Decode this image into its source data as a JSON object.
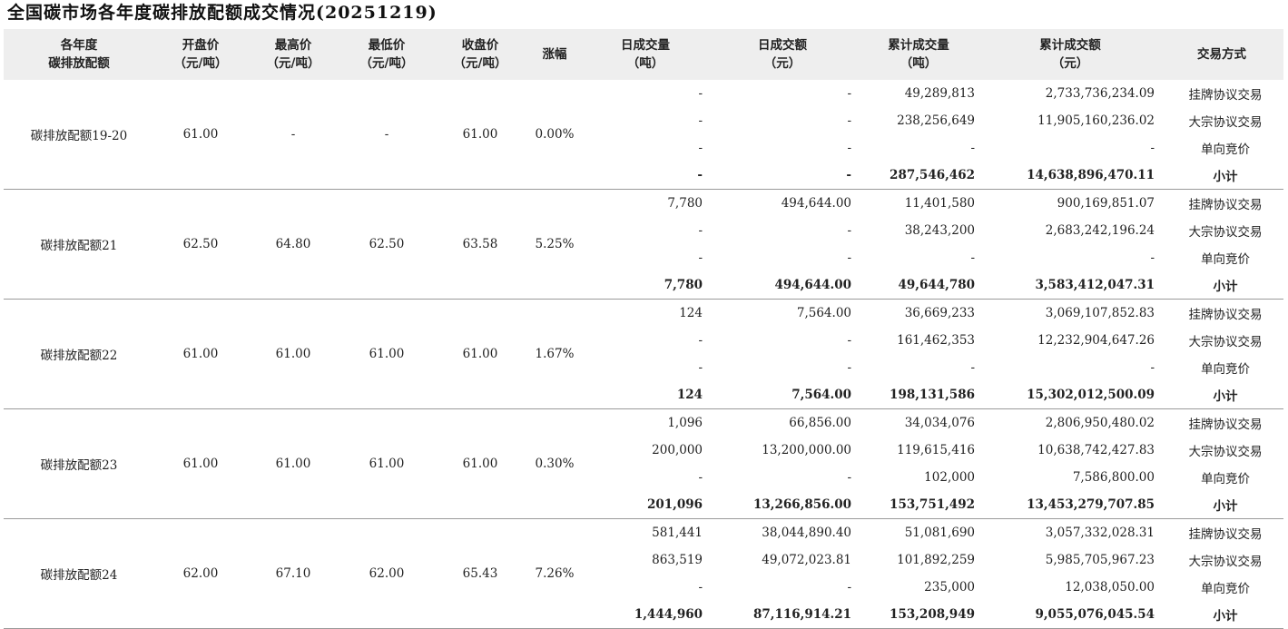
{
  "title": "全国碳市场各年度碳排放配额成交情况(20251219)",
  "headers": [
    [
      "各年度",
      "碳排放配额"
    ],
    [
      "开盘价",
      "（元/吨）"
    ],
    [
      "最高价",
      "（元/吨）"
    ],
    [
      "最低价",
      "（元/吨）"
    ],
    [
      "收盘价",
      "（元/吨）"
    ],
    [
      "涨幅"
    ],
    [
      "日成交量",
      "（吨）"
    ],
    [
      "日成交额",
      "（元）"
    ],
    [
      "累计成交量",
      "（吨）"
    ],
    [
      "累计成交额",
      "（元）"
    ],
    [
      "交易方式"
    ]
  ],
  "groups": [
    {
      "name": "碳排放配额19-20",
      "open": "61.00",
      "high": "-",
      "low": "-",
      "close": "61.00",
      "change": "0.00%",
      "rows": [
        {
          "dv": "-",
          "da": "-",
          "cv": "49,289,813",
          "ca": "2,733,736,234.09",
          "method": "挂牌协议交易"
        },
        {
          "dv": "-",
          "da": "-",
          "cv": "238,256,649",
          "ca": "11,905,160,236.02",
          "method": "大宗协议交易"
        },
        {
          "dv": "-",
          "da": "-",
          "cv": "-",
          "ca": "-",
          "method": "单向竞价"
        },
        {
          "dv": "-",
          "da": "-",
          "cv": "287,546,462",
          "ca": "14,638,896,470.11",
          "method": "小计"
        }
      ]
    },
    {
      "name": "碳排放配额21",
      "open": "62.50",
      "high": "64.80",
      "low": "62.50",
      "close": "63.58",
      "change": "5.25%",
      "rows": [
        {
          "dv": "7,780",
          "da": "494,644.00",
          "cv": "11,401,580",
          "ca": "900,169,851.07",
          "method": "挂牌协议交易"
        },
        {
          "dv": "-",
          "da": "-",
          "cv": "38,243,200",
          "ca": "2,683,242,196.24",
          "method": "大宗协议交易"
        },
        {
          "dv": "-",
          "da": "-",
          "cv": "-",
          "ca": "-",
          "method": "单向竞价"
        },
        {
          "dv": "7,780",
          "da": "494,644.00",
          "cv": "49,644,780",
          "ca": "3,583,412,047.31",
          "method": "小计"
        }
      ]
    },
    {
      "name": "碳排放配额22",
      "open": "61.00",
      "high": "61.00",
      "low": "61.00",
      "close": "61.00",
      "change": "1.67%",
      "rows": [
        {
          "dv": "124",
          "da": "7,564.00",
          "cv": "36,669,233",
          "ca": "3,069,107,852.83",
          "method": "挂牌协议交易"
        },
        {
          "dv": "-",
          "da": "-",
          "cv": "161,462,353",
          "ca": "12,232,904,647.26",
          "method": "大宗协议交易"
        },
        {
          "dv": "-",
          "da": "-",
          "cv": "-",
          "ca": "-",
          "method": "单向竞价"
        },
        {
          "dv": "124",
          "da": "7,564.00",
          "cv": "198,131,586",
          "ca": "15,302,012,500.09",
          "method": "小计"
        }
      ]
    },
    {
      "name": "碳排放配额23",
      "open": "61.00",
      "high": "61.00",
      "low": "61.00",
      "close": "61.00",
      "change": "0.30%",
      "rows": [
        {
          "dv": "1,096",
          "da": "66,856.00",
          "cv": "34,034,076",
          "ca": "2,806,950,480.02",
          "method": "挂牌协议交易"
        },
        {
          "dv": "200,000",
          "da": "13,200,000.00",
          "cv": "119,615,416",
          "ca": "10,638,742,427.83",
          "method": "大宗协议交易"
        },
        {
          "dv": "-",
          "da": "-",
          "cv": "102,000",
          "ca": "7,586,800.00",
          "method": "单向竞价"
        },
        {
          "dv": "201,096",
          "da": "13,266,856.00",
          "cv": "153,751,492",
          "ca": "13,453,279,707.85",
          "method": "小计"
        }
      ]
    },
    {
      "name": "碳排放配额24",
      "open": "62.00",
      "high": "67.10",
      "low": "62.00",
      "close": "65.43",
      "change": "7.26%",
      "rows": [
        {
          "dv": "581,441",
          "da": "38,044,890.40",
          "cv": "51,081,690",
          "ca": "3,057,332,028.31",
          "method": "挂牌协议交易"
        },
        {
          "dv": "863,519",
          "da": "49,072,023.81",
          "cv": "101,892,259",
          "ca": "5,985,705,967.23",
          "method": "大宗协议交易"
        },
        {
          "dv": "-",
          "da": "-",
          "cv": "235,000",
          "ca": "12,038,050.00",
          "method": "单向竞价"
        },
        {
          "dv": "1,444,960",
          "da": "87,116,914.21",
          "cv": "153,208,949",
          "ca": "9,055,076,045.54",
          "method": "小计"
        }
      ]
    }
  ]
}
